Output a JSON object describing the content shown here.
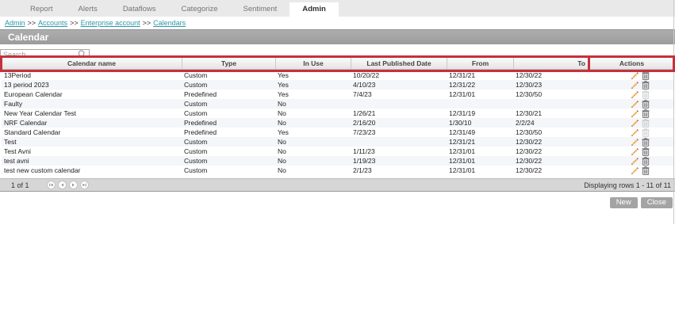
{
  "tabs": {
    "items": [
      {
        "label": "Report"
      },
      {
        "label": "Alerts"
      },
      {
        "label": "Dataflows"
      },
      {
        "label": "Categorize"
      },
      {
        "label": "Sentiment"
      },
      {
        "label": "Admin",
        "active": true
      }
    ]
  },
  "breadcrumb": {
    "separator": ">>",
    "items": [
      {
        "label": "Admin"
      },
      {
        "label": "Accounts"
      },
      {
        "label": "Enterprise account"
      },
      {
        "label": "Calendars"
      }
    ]
  },
  "header": {
    "title": "Calendar"
  },
  "search": {
    "placeholder": "Search",
    "icon": "search-icon"
  },
  "table": {
    "columns": [
      {
        "label": "Calendar name"
      },
      {
        "label": "Type"
      },
      {
        "label": "In Use"
      },
      {
        "label": "Last Published Date"
      },
      {
        "label": "From"
      },
      {
        "label": "To"
      },
      {
        "label": "Actions"
      }
    ],
    "row_icons": {
      "edit": "pencil-icon",
      "delete": "trash-icon"
    },
    "rows": [
      {
        "name": "13Period",
        "type": "Custom",
        "in_use": "Yes",
        "last_published": "10/20/22",
        "from": "12/31/21",
        "to": "12/30/22",
        "delete_enabled": true
      },
      {
        "name": "13 period 2023",
        "type": "Custom",
        "in_use": "Yes",
        "last_published": "4/10/23",
        "from": "12/31/22",
        "to": "12/30/23",
        "delete_enabled": true
      },
      {
        "name": "European Calendar",
        "type": "Predefined",
        "in_use": "Yes",
        "last_published": "7/4/23",
        "from": "12/31/01",
        "to": "12/30/50",
        "delete_enabled": false
      },
      {
        "name": "Faulty",
        "type": "Custom",
        "in_use": "No",
        "last_published": "",
        "from": "",
        "to": "",
        "delete_enabled": true
      },
      {
        "name": "New Year Calendar Test",
        "type": "Custom",
        "in_use": "No",
        "last_published": "1/26/21",
        "from": "12/31/19",
        "to": "12/30/21",
        "delete_enabled": true
      },
      {
        "name": "NRF Calendar",
        "type": "Predefined",
        "in_use": "No",
        "last_published": "2/16/20",
        "from": "1/30/10",
        "to": "2/2/24",
        "delete_enabled": false
      },
      {
        "name": "Standard Calendar",
        "type": "Predefined",
        "in_use": "Yes",
        "last_published": "7/23/23",
        "from": "12/31/49",
        "to": "12/30/50",
        "delete_enabled": false
      },
      {
        "name": "Test",
        "type": "Custom",
        "in_use": "No",
        "last_published": "",
        "from": "12/31/21",
        "to": "12/30/22",
        "delete_enabled": true
      },
      {
        "name": "Test Avni",
        "type": "Custom",
        "in_use": "No",
        "last_published": "1/11/23",
        "from": "12/31/01",
        "to": "12/30/22",
        "delete_enabled": true
      },
      {
        "name": "test avni",
        "type": "Custom",
        "in_use": "No",
        "last_published": "1/19/23",
        "from": "12/31/01",
        "to": "12/30/22",
        "delete_enabled": true
      },
      {
        "name": "test new custom calendar",
        "type": "Custom",
        "in_use": "No",
        "last_published": "2/1/23",
        "from": "12/31/01",
        "to": "12/30/22",
        "delete_enabled": true
      }
    ]
  },
  "pagination": {
    "page_text": "1 of 1",
    "buttons": [
      "first-page",
      "previous-page",
      "next-page",
      "last-page"
    ],
    "info": "Displaying rows 1 - 11 of 11"
  },
  "footer": {
    "new_label": "New",
    "close_label": "Close"
  },
  "colors": {
    "annotation_red": "#c5313c",
    "link_teal": "#2e96a8",
    "title_bar_gray": "#a3a3a3",
    "row_stripe": "#f4f6f9"
  }
}
